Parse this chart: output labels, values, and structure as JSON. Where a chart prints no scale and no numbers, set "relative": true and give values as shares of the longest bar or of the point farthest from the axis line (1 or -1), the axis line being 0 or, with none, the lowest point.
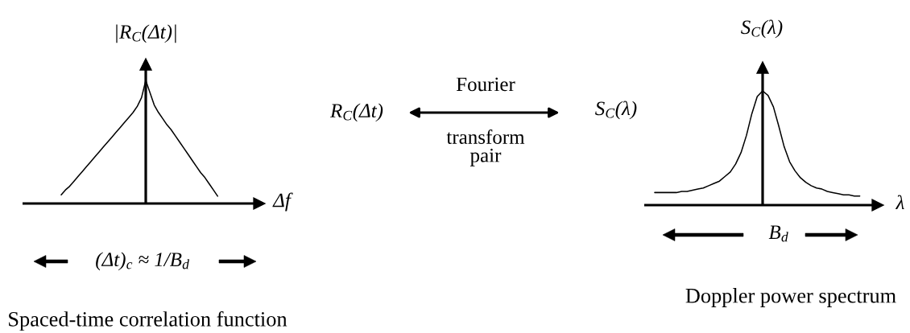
{
  "chart_data": [
    {
      "type": "line",
      "relative": true,
      "categories": [
        null,
        null,
        null,
        null,
        null,
        null,
        null,
        null,
        null,
        null,
        null,
        null,
        null,
        null,
        null,
        null,
        null,
        null,
        null,
        null,
        null,
        null,
        null,
        null,
        null,
        null,
        null,
        null,
        null,
        null,
        null,
        null,
        null,
        null,
        null,
        null,
        null,
        null
      ],
      "series": [
        {
          "color": "#000000",
          "values": [
            0.07,
            0.11,
            0.14,
            0.18,
            0.22,
            0.26,
            0.3,
            0.34,
            0.38,
            0.42,
            0.46,
            0.5,
            0.54,
            0.58,
            0.62,
            0.66,
            0.7,
            0.74,
            0.79,
            0.86,
            1.0,
            0.9,
            0.8,
            0.74,
            0.69,
            0.64,
            0.6,
            0.55,
            0.5,
            0.45,
            0.4,
            0.35,
            0.3,
            0.25,
            0.21,
            0.16,
            0.11,
            0.06
          ]
        }
      ],
      "xlabel": "Δf",
      "ylabel": "|R$_{C}$(Δt)|",
      "annotations": [
        "(Δt)$_{c}$ ≈ 1/B$_{d}$"
      ],
      "title": "Spaced-time correlation function"
    },
    {
      "type": "other",
      "annotations": [
        "R$_{C}$(Δt)",
        "Fourier",
        "transform\npair",
        "S$_{C}$(λ)"
      ]
    },
    {
      "type": "line",
      "relative": true,
      "categories": [
        null,
        null,
        null,
        null,
        null,
        null,
        null,
        null,
        null,
        null,
        null,
        null,
        null,
        null,
        null,
        null,
        null,
        null,
        null,
        null,
        null,
        null,
        null,
        null,
        null,
        null,
        null,
        null,
        null,
        null,
        null,
        null,
        null,
        null,
        null,
        null,
        null,
        null,
        null
      ],
      "series": [
        {
          "color": "#000000",
          "values": [
            0.11,
            0.11,
            0.11,
            0.11,
            0.11,
            0.12,
            0.12,
            0.13,
            0.14,
            0.15,
            0.17,
            0.19,
            0.21,
            0.25,
            0.29,
            0.36,
            0.46,
            0.61,
            0.8,
            0.95,
            1.0,
            0.96,
            0.86,
            0.69,
            0.51,
            0.38,
            0.3,
            0.24,
            0.2,
            0.17,
            0.15,
            0.14,
            0.12,
            0.11,
            0.1,
            0.09,
            0.09,
            0.08,
            0.08
          ]
        }
      ],
      "xlabel": "λ",
      "ylabel": "S$_{C}$(λ)",
      "annotations": [
        "B$_{d}$"
      ],
      "title": "Doppler power spectrum"
    }
  ]
}
